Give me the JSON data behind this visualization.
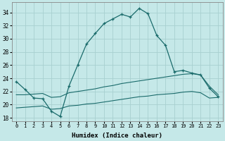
{
  "xlabel": "Humidex (Indice chaleur)",
  "ylabel": "",
  "xlim": [
    -0.5,
    23.5
  ],
  "ylim": [
    17.5,
    35.5
  ],
  "xticks": [
    0,
    1,
    2,
    3,
    4,
    5,
    6,
    7,
    8,
    9,
    10,
    11,
    12,
    13,
    14,
    15,
    16,
    17,
    18,
    19,
    20,
    21,
    22,
    23
  ],
  "yticks": [
    18,
    20,
    22,
    24,
    26,
    28,
    30,
    32,
    34
  ],
  "bg_color": "#c5e8e8",
  "grid_color": "#a8d0d0",
  "line_color": "#1a6b6b",
  "line1_x": [
    0,
    1,
    2,
    3,
    4,
    5,
    6,
    7,
    8,
    9,
    10,
    11,
    12,
    13,
    14,
    15,
    16,
    17,
    18,
    19,
    20,
    21,
    22,
    23
  ],
  "line1_y": [
    23.5,
    22.3,
    21.0,
    20.9,
    19.0,
    18.2,
    22.8,
    26.0,
    29.2,
    30.8,
    32.3,
    33.0,
    33.7,
    33.3,
    34.6,
    33.8,
    30.5,
    29.0,
    25.0,
    25.2,
    24.8,
    24.5,
    22.5,
    21.2
  ],
  "line2_x": [
    0,
    1,
    2,
    3,
    4,
    5,
    6,
    7,
    8,
    9,
    10,
    11,
    12,
    13,
    14,
    15,
    16,
    17,
    18,
    19,
    20,
    21,
    22,
    23
  ],
  "line2_y": [
    21.5,
    21.5,
    21.6,
    21.7,
    21.1,
    21.2,
    21.8,
    22.0,
    22.2,
    22.4,
    22.7,
    22.9,
    23.2,
    23.4,
    23.6,
    23.8,
    24.0,
    24.2,
    24.4,
    24.6,
    24.7,
    24.5,
    22.8,
    21.5
  ],
  "line3_x": [
    0,
    1,
    2,
    3,
    4,
    5,
    6,
    7,
    8,
    9,
    10,
    11,
    12,
    13,
    14,
    15,
    16,
    17,
    18,
    19,
    20,
    21,
    22,
    23
  ],
  "line3_y": [
    19.5,
    19.6,
    19.7,
    19.8,
    19.3,
    19.4,
    19.8,
    19.9,
    20.1,
    20.2,
    20.4,
    20.6,
    20.8,
    21.0,
    21.2,
    21.3,
    21.5,
    21.6,
    21.7,
    21.9,
    22.0,
    21.8,
    21.0,
    21.1
  ]
}
